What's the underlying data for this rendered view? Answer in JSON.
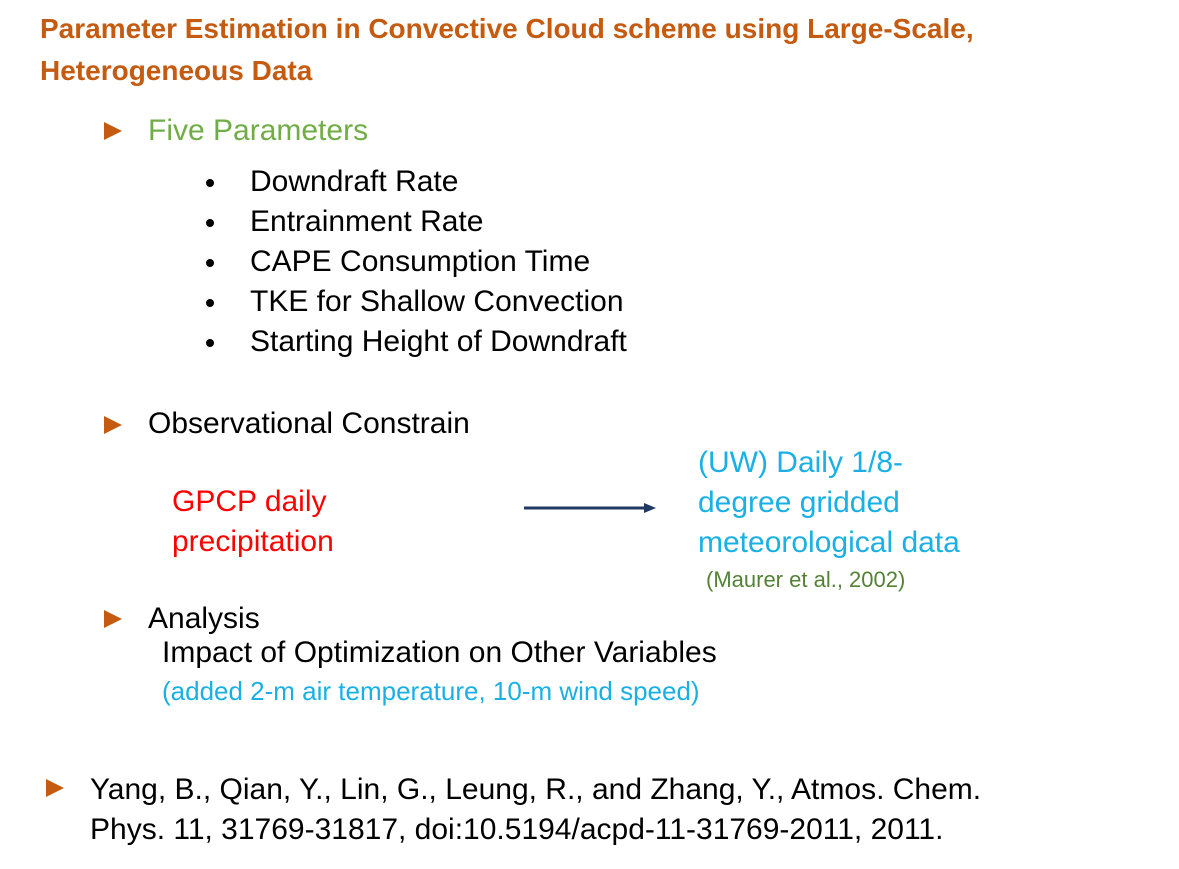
{
  "title": "Parameter Estimation in Convective Cloud scheme using Large-Scale, Heterogeneous Data",
  "five_parameters": {
    "heading": "Five Parameters",
    "items": [
      "Downdraft Rate",
      "Entrainment Rate",
      "CAPE Consumption Time",
      "TKE for Shallow Convection",
      "Starting Height of Downdraft"
    ]
  },
  "observational": {
    "heading": "Observational Constrain",
    "source_line1": "GPCP daily",
    "source_line2": "precipitation",
    "target_line1": "(UW) Daily 1/8-",
    "target_line2": "degree gridded",
    "target_line3": "meteorological data",
    "citation": "(Maurer et al., 2002)"
  },
  "analysis": {
    "heading": "Analysis",
    "subheading": "Impact of Optimization on Other Variables",
    "note": "(added 2-m air temperature, 10-m wind speed)"
  },
  "reference": {
    "line1": "Yang, B., Qian, Y., Lin, G., Leung, R., and Zhang, Y., Atmos. Chem.",
    "line2": "Phys. 11, 31769-31817, doi:10.5194/acpd-11-31769-2011, 2011."
  },
  "colors": {
    "title": "#c55a11",
    "arrow_bullet": "#c55a11",
    "green_heading": "#70ad47",
    "red_text": "#ff0000",
    "cyan_text": "#1ab0e6",
    "olive_text": "#548235"
  }
}
